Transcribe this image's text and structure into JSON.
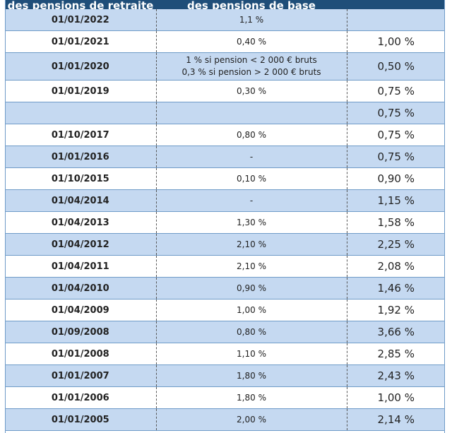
{
  "header": {
    "col1": "des pensions de retraite",
    "col2": "des pensions de base",
    "col3": ""
  },
  "rows": [
    {
      "date": "01/01/2022",
      "base": "1,1 %",
      "comp": ""
    },
    {
      "date": "01/01/2021",
      "base": "0,40 %",
      "comp": "1,00 %"
    },
    {
      "date": "01/01/2020",
      "base_lines": [
        "1 % si pension < 2 000 € bruts",
        "0,3 % si pension > 2 000 € bruts"
      ],
      "comp": "0,50 %"
    },
    {
      "date": "01/01/2019",
      "base": "0,30 %",
      "comp": "0,75 %"
    },
    {
      "date": "",
      "base": "",
      "comp": "0,75 %"
    },
    {
      "date": "01/10/2017",
      "base": "0,80 %",
      "comp": "0,75 %"
    },
    {
      "date": "01/01/2016",
      "base": "-",
      "comp": "0,75 %"
    },
    {
      "date": "01/10/2015",
      "base": "0,10 %",
      "comp": "0,90 %"
    },
    {
      "date": "01/04/2014",
      "base": "-",
      "comp": "1,15 %"
    },
    {
      "date": "01/04/2013",
      "base": "1,30 %",
      "comp": "1,58 %"
    },
    {
      "date": "01/04/2012",
      "base": "2,10 %",
      "comp": "2,25 %"
    },
    {
      "date": "01/04/2011",
      "base": "2,10 %",
      "comp": "2,08 %"
    },
    {
      "date": "01/04/2010",
      "base": "0,90 %",
      "comp": "1,46 %"
    },
    {
      "date": "01/04/2009",
      "base": "1,00 %",
      "comp": "1,92 %"
    },
    {
      "date": "01/09/2008",
      "base": "0,80 %",
      "comp": "3,66 %"
    },
    {
      "date": "01/01/2008",
      "base": "1,10 %",
      "comp": "2,85 %"
    },
    {
      "date": "01/01/2007",
      "base": "1,80 %",
      "comp": "2,43 %"
    },
    {
      "date": "01/01/2006",
      "base": "1,80 %",
      "comp": "1,00 %"
    },
    {
      "date": "01/01/2005",
      "base": "2,00 %",
      "comp": "2,14 %"
    }
  ]
}
